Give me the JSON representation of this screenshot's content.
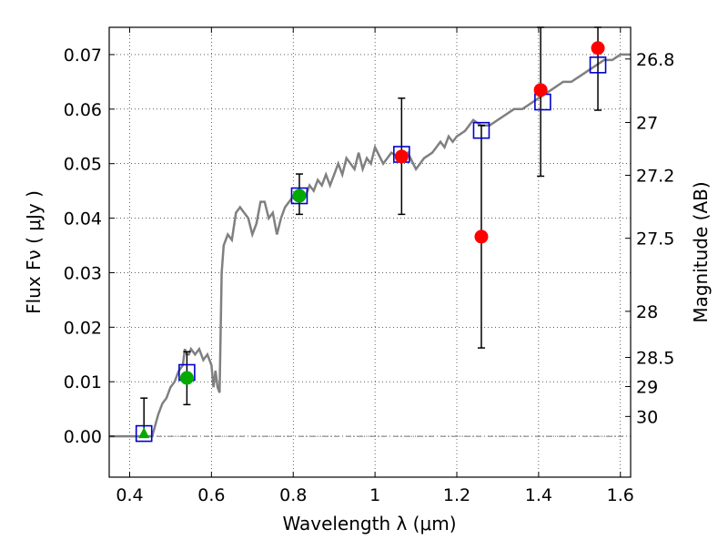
{
  "chart_data": {
    "type": "scatter",
    "xlabel": "Wavelength  λ (μm)",
    "ylabel": "Flux  Fν  ( μJy )",
    "y2label": "Magnitude (AB)",
    "xlim": [
      0.35,
      1.625
    ],
    "ylim": [
      -0.0075,
      0.075
    ],
    "x_ticks": [
      0.4,
      0.6,
      0.8,
      1.0,
      1.2,
      1.4,
      1.6
    ],
    "x_tick_labels": [
      "0.4",
      "0.6",
      "0.8",
      "1",
      "1.2",
      "1.4",
      "1.6"
    ],
    "y_ticks": [
      0.0,
      0.01,
      0.02,
      0.03,
      0.04,
      0.05,
      0.06,
      0.07
    ],
    "y_tick_labels": [
      "0.00",
      "0.01",
      "0.02",
      "0.03",
      "0.04",
      "0.05",
      "0.06",
      "0.07"
    ],
    "y2_ticks": [
      26.8,
      27,
      27.2,
      27.5,
      28,
      28.5,
      29,
      30
    ],
    "y2_tick_labels": [
      "26.8",
      "27",
      "27.2",
      "27.5",
      "28",
      "28.5",
      "29",
      "30"
    ],
    "grid": true,
    "colors": {
      "model": "#808080",
      "model_points": "#0000cc",
      "detected": "#00aa00",
      "observed": "#ff0000",
      "error_bars": "#000000"
    },
    "model_spectrum": {
      "x": [
        0.35,
        0.44,
        0.455,
        0.47,
        0.48,
        0.49,
        0.5,
        0.51,
        0.52,
        0.53,
        0.535,
        0.54,
        0.545,
        0.55,
        0.56,
        0.57,
        0.58,
        0.59,
        0.6,
        0.605,
        0.61,
        0.615,
        0.62,
        0.625,
        0.63,
        0.64,
        0.65,
        0.66,
        0.67,
        0.68,
        0.69,
        0.7,
        0.71,
        0.72,
        0.73,
        0.74,
        0.75,
        0.76,
        0.77,
        0.78,
        0.79,
        0.8,
        0.81,
        0.82,
        0.83,
        0.84,
        0.85,
        0.86,
        0.87,
        0.88,
        0.89,
        0.9,
        0.91,
        0.92,
        0.93,
        0.94,
        0.95,
        0.96,
        0.97,
        0.98,
        0.99,
        1.0,
        1.02,
        1.04,
        1.06,
        1.08,
        1.1,
        1.12,
        1.14,
        1.16,
        1.17,
        1.18,
        1.19,
        1.2,
        1.22,
        1.24,
        1.26,
        1.28,
        1.3,
        1.32,
        1.34,
        1.36,
        1.38,
        1.4,
        1.42,
        1.44,
        1.46,
        1.48,
        1.5,
        1.52,
        1.54,
        1.56,
        1.58,
        1.6,
        1.625
      ],
      "y": [
        0.0,
        0.0,
        0.0,
        0.004,
        0.006,
        0.007,
        0.009,
        0.01,
        0.012,
        0.013,
        0.016,
        0.015,
        0.015,
        0.016,
        0.015,
        0.016,
        0.014,
        0.015,
        0.013,
        0.009,
        0.012,
        0.009,
        0.008,
        0.03,
        0.035,
        0.037,
        0.036,
        0.041,
        0.042,
        0.041,
        0.04,
        0.037,
        0.039,
        0.043,
        0.043,
        0.04,
        0.041,
        0.037,
        0.04,
        0.042,
        0.043,
        0.044,
        0.045,
        0.045,
        0.044,
        0.046,
        0.045,
        0.047,
        0.046,
        0.048,
        0.046,
        0.048,
        0.05,
        0.048,
        0.051,
        0.05,
        0.049,
        0.052,
        0.049,
        0.051,
        0.05,
        0.053,
        0.05,
        0.052,
        0.051,
        0.052,
        0.049,
        0.051,
        0.052,
        0.054,
        0.053,
        0.055,
        0.054,
        0.055,
        0.056,
        0.058,
        0.057,
        0.057,
        0.058,
        0.059,
        0.06,
        0.06,
        0.061,
        0.062,
        0.063,
        0.064,
        0.065,
        0.065,
        0.066,
        0.067,
        0.068,
        0.069,
        0.069,
        0.07,
        0.07
      ]
    },
    "series": [
      {
        "marker": "open-square",
        "x": [
          0.435,
          0.54,
          0.815,
          1.065,
          1.26,
          1.41,
          1.545
        ],
        "values": [
          0.0005,
          0.0117,
          0.0441,
          0.0517,
          0.0561,
          0.0613,
          0.0681
        ]
      },
      {
        "marker": "filled-circle",
        "x": [
          0.54,
          0.815
        ],
        "values": [
          0.0107,
          0.0441
        ]
      },
      {
        "marker": "triangle",
        "x": [
          0.435
        ],
        "values": [
          0.0005
        ]
      },
      {
        "marker": "filled-circle",
        "x": [
          1.065,
          1.26,
          1.405,
          1.545
        ],
        "values": [
          0.0513,
          0.0366,
          0.0635,
          0.0712
        ]
      }
    ],
    "error_bars": [
      {
        "x": 0.435,
        "low": 0.0,
        "high": 0.007
      },
      {
        "x": 0.54,
        "low": 0.0058,
        "high": 0.0155
      },
      {
        "x": 0.815,
        "low": 0.0407,
        "high": 0.0481
      },
      {
        "x": 1.065,
        "low": 0.0407,
        "high": 0.062
      },
      {
        "x": 1.26,
        "low": 0.0162,
        "high": 0.057
      },
      {
        "x": 1.405,
        "low": 0.0477,
        "high": 0.075
      },
      {
        "x": 1.545,
        "low": 0.0598,
        "high": 0.075
      }
    ]
  }
}
